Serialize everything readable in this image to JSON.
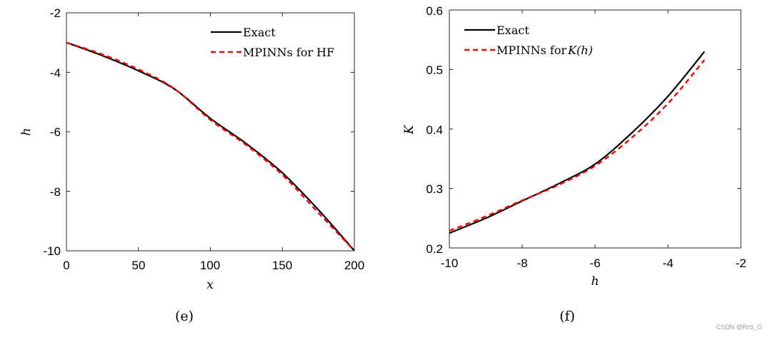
{
  "chart_data": [
    {
      "type": "line",
      "panel": "(e)",
      "title": "",
      "xlabel": "x",
      "ylabel": "h",
      "xlim": [
        0,
        200
      ],
      "ylim": [
        -10,
        -2
      ],
      "xticks": [
        0,
        50,
        100,
        150,
        200
      ],
      "yticks": [
        -10,
        -8,
        -6,
        -4,
        -2
      ],
      "grid": false,
      "legend_position": "upper right",
      "x": [
        0,
        25,
        50,
        75,
        100,
        125,
        150,
        175,
        200
      ],
      "series": [
        {
          "name": "Exact",
          "color": "#000000",
          "style": "solid",
          "values": [
            -3.0,
            -3.44,
            -3.95,
            -4.56,
            -5.55,
            -6.4,
            -7.38,
            -8.62,
            -10.0
          ]
        },
        {
          "name": "MPINNs for HF",
          "color": "#ff0000",
          "style": "dashed",
          "values": [
            -3.0,
            -3.4,
            -3.9,
            -4.55,
            -5.6,
            -6.45,
            -7.45,
            -8.72,
            -10.0
          ]
        }
      ]
    },
    {
      "type": "line",
      "panel": "(f)",
      "title": "",
      "xlabel": "h",
      "ylabel": "K",
      "xlim": [
        -10,
        -2
      ],
      "ylim": [
        0.2,
        0.6
      ],
      "xticks": [
        -10,
        -8,
        -6,
        -4,
        -2
      ],
      "yticks": [
        0.2,
        0.3,
        0.4,
        0.5,
        0.6
      ],
      "grid": false,
      "legend_position": "upper left",
      "x": [
        -10,
        -9,
        -8,
        -7,
        -6,
        -5,
        -4,
        -3
      ],
      "series": [
        {
          "name": "Exact",
          "color": "#000000",
          "style": "solid",
          "values": [
            0.225,
            0.25,
            0.279,
            0.308,
            0.341,
            0.393,
            0.455,
            0.53
          ]
        },
        {
          "name": "MPINNs for K(h)",
          "color": "#ff0000",
          "style": "dashed",
          "values": [
            0.229,
            0.253,
            0.28,
            0.306,
            0.338,
            0.385,
            0.443,
            0.516
          ]
        }
      ]
    }
  ],
  "panels": {
    "left": {
      "caption": "(e)",
      "xlabel": "x",
      "ylabel": "h",
      "xtick_labels": [
        "0",
        "50",
        "100",
        "150",
        "200"
      ],
      "ytick_labels": [
        "-10",
        "-8",
        "-6",
        "-4",
        "-2"
      ],
      "legend": [
        "Exact",
        "MPINNs for HF"
      ]
    },
    "right": {
      "caption": "(f)",
      "xlabel": "h",
      "ylabel": "K",
      "xtick_labels": [
        "-10",
        "-8",
        "-6",
        "-4",
        "-2"
      ],
      "ytick_labels": [
        "0.2",
        "0.3",
        "0.4",
        "0.5",
        "0.6"
      ],
      "legend_exact": "Exact",
      "legend_mpinn_prefix": "MPINNs for",
      "legend_mpinn_math": "K(h)"
    }
  },
  "watermark": "CSDN @RrS_G"
}
